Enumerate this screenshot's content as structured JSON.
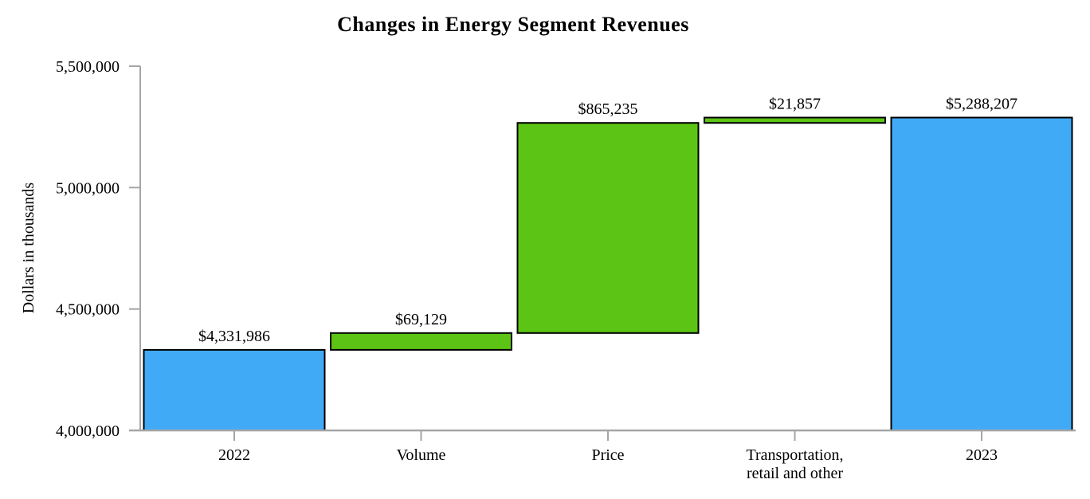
{
  "page": {
    "background": "#FFFFFF"
  },
  "chart_data": {
    "type": "waterfall",
    "title": "Changes in Energy Segment Revenues",
    "ylabel": "Dollars in thousands",
    "xlabel": "",
    "ylim": [
      4000000,
      5500000
    ],
    "grid": false,
    "legend": false,
    "yticks": [
      {
        "value": 4000000,
        "label": "4,000,000"
      },
      {
        "value": 4500000,
        "label": "4,500,000"
      },
      {
        "value": 5000000,
        "label": "5,000,000"
      },
      {
        "value": 5500000,
        "label": "5,500,000"
      }
    ],
    "categories": [
      "2022",
      "Volume",
      "Price",
      "Transportation, retail and other",
      "2023"
    ],
    "xtick_lines": [
      [
        "2022"
      ],
      [
        "Volume"
      ],
      [
        "Price"
      ],
      [
        "Transportation,",
        "retail and other"
      ],
      [
        "2023"
      ]
    ],
    "bars": [
      {
        "category": "2022",
        "data_label": "$4,331,986",
        "value": 4331986,
        "start": 4000000,
        "end": 4331986,
        "kind": "total",
        "color": "#41AAF7"
      },
      {
        "category": "Volume",
        "data_label": "$69,129",
        "value": 69129,
        "start": 4331986,
        "end": 4401115,
        "kind": "increase",
        "color": "#5CC414"
      },
      {
        "category": "Price",
        "data_label": "$865,235",
        "value": 865235,
        "start": 4401115,
        "end": 5266350,
        "kind": "increase",
        "color": "#5CC414"
      },
      {
        "category": "Transportation, retail and other",
        "data_label": "$21,857",
        "value": 21857,
        "start": 5266350,
        "end": 5288207,
        "kind": "increase",
        "color": "#5CC414"
      },
      {
        "category": "2023",
        "data_label": "$5,288,207",
        "value": 5288207,
        "start": 4000000,
        "end": 5288207,
        "kind": "total",
        "color": "#41AAF7"
      }
    ],
    "colors": {
      "total_bar": "#41AAF7",
      "increase_bar": "#5CC414",
      "bar_border": "#000000",
      "axis_line": "#A6A6A6",
      "text": "#000000"
    }
  }
}
